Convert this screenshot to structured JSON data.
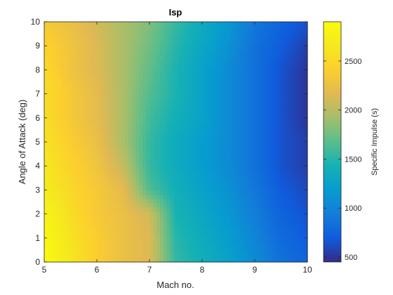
{
  "chart_data": {
    "type": "heatmap",
    "title": "Isp",
    "xlabel": "Mach no.",
    "ylabel": "Angle of Attack (deg)",
    "colorbar_label": "Specific Impulse (s)",
    "colormap": "parula",
    "xlim": [
      5,
      10
    ],
    "ylim": [
      0,
      10
    ],
    "clim": [
      450,
      2900
    ],
    "xticks": [
      5,
      6,
      7,
      8,
      9,
      10
    ],
    "yticks": [
      0,
      1,
      2,
      3,
      4,
      5,
      6,
      7,
      8,
      9,
      10
    ],
    "cticks": [
      500,
      1000,
      1500,
      2000,
      2500
    ],
    "x": [
      5,
      5.5,
      6,
      6.5,
      7,
      7.5,
      8,
      8.5,
      9,
      9.5,
      10
    ],
    "y": [
      0,
      1,
      2,
      3,
      4,
      5,
      6,
      7,
      8,
      9,
      10
    ],
    "z": [
      [
        2900,
        2650,
        2400,
        2250,
        2150,
        1550,
        1400,
        1250,
        1050,
        850,
        750
      ],
      [
        2850,
        2600,
        2400,
        2250,
        2150,
        1500,
        1350,
        1200,
        1000,
        800,
        700
      ],
      [
        2800,
        2550,
        2350,
        2250,
        2100,
        1450,
        1300,
        1150,
        950,
        750,
        650
      ],
      [
        2700,
        2500,
        2350,
        2200,
        1650,
        1400,
        1250,
        1100,
        900,
        700,
        600
      ],
      [
        2650,
        2450,
        2300,
        2050,
        1550,
        1350,
        1200,
        1050,
        850,
        650,
        550
      ],
      [
        2600,
        2400,
        2250,
        1950,
        1550,
        1350,
        1200,
        1050,
        850,
        650,
        550
      ],
      [
        2550,
        2350,
        2200,
        1950,
        1600,
        1400,
        1250,
        1050,
        850,
        650,
        500
      ],
      [
        2550,
        2350,
        2200,
        1950,
        1650,
        1450,
        1250,
        1050,
        850,
        650,
        500
      ],
      [
        2500,
        2300,
        2150,
        1950,
        1700,
        1450,
        1250,
        1050,
        850,
        650,
        500
      ],
      [
        2450,
        2300,
        2150,
        1950,
        1750,
        1500,
        1300,
        1100,
        850,
        700,
        550
      ],
      [
        2350,
        2250,
        2100,
        1950,
        1800,
        1550,
        1350,
        1150,
        900,
        750,
        650
      ]
    ]
  }
}
